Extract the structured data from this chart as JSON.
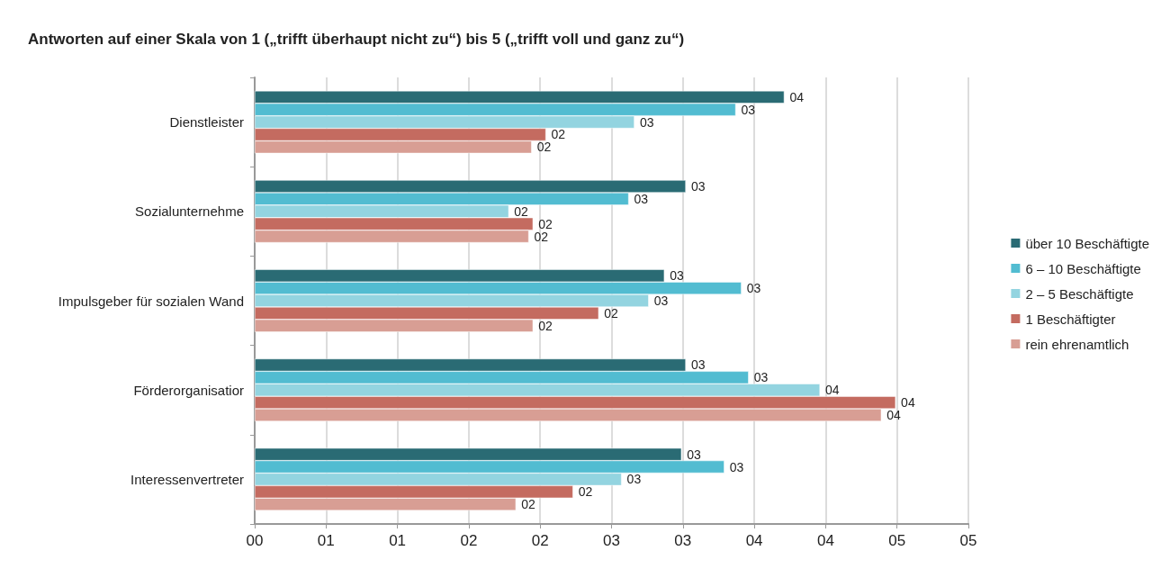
{
  "chart_data": {
    "type": "bar",
    "orientation": "horizontal",
    "title": "Antworten auf einer Skala von 1 („trifft überhaupt nicht zu“) bis 5 („trifft voll und ganz zu“)",
    "categories": [
      "Dienstleister",
      "Sozialunternehme",
      "Impulsgeber für sozialen Wand",
      "Förderorganisatior",
      "Interessenvertreter"
    ],
    "series": [
      {
        "name": "über 10 Beschäftigte",
        "color": "#2a6b74",
        "values": [
          3.71,
          3.02,
          2.87,
          3.02,
          2.99
        ],
        "value_labels": [
          "04",
          "03",
          "03",
          "03",
          "03"
        ]
      },
      {
        "name": "6 – 10 Beschäftigte",
        "color": "#52bcd1",
        "values": [
          3.37,
          2.62,
          3.41,
          3.46,
          3.29
        ],
        "value_labels": [
          "03",
          "03",
          "03",
          "03",
          "03"
        ]
      },
      {
        "name": "2 – 5 Beschäftigte",
        "color": "#93d4e0",
        "values": [
          2.66,
          1.78,
          2.76,
          3.96,
          2.57
        ],
        "value_labels": [
          "03",
          "02",
          "03",
          "04",
          "03"
        ]
      },
      {
        "name": "1 Beschäftigter",
        "color": "#c46b60",
        "values": [
          2.04,
          1.95,
          2.41,
          4.49,
          2.23
        ],
        "value_labels": [
          "02",
          "02",
          "02",
          "04",
          "02"
        ]
      },
      {
        "name": "rein ehrenamtlich",
        "color": "#d89e94",
        "values": [
          1.94,
          1.92,
          1.95,
          4.39,
          1.83
        ],
        "value_labels": [
          "02",
          "02",
          "02",
          "04",
          "02"
        ]
      }
    ],
    "xlim": [
      0,
      5
    ],
    "xticks": [
      {
        "value": 0,
        "label": "00"
      },
      {
        "value": 0.5,
        "label": "01"
      },
      {
        "value": 1,
        "label": "01"
      },
      {
        "value": 1.5,
        "label": "02"
      },
      {
        "value": 2,
        "label": "02"
      },
      {
        "value": 2.5,
        "label": "03"
      },
      {
        "value": 3,
        "label": "03"
      },
      {
        "value": 3.5,
        "label": "04"
      },
      {
        "value": 4,
        "label": "04"
      },
      {
        "value": 4.5,
        "label": "05"
      },
      {
        "value": 5,
        "label": "05"
      }
    ],
    "grid": "x",
    "legend": "right"
  }
}
